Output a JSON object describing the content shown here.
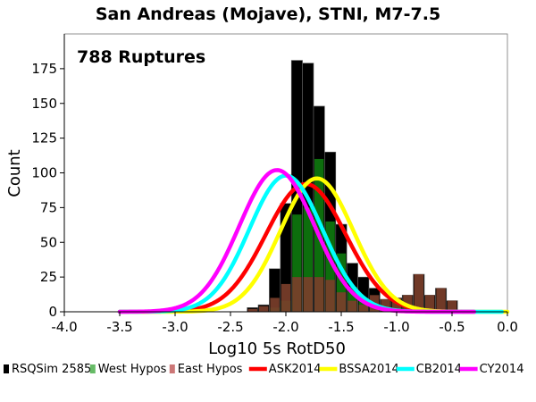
{
  "chart_data": {
    "type": "bar",
    "title": "San Andreas (Mojave), STNI, M7-7.5",
    "annotation": "788 Ruptures",
    "xlabel": "Log10 5s RotD50",
    "ylabel": "Count",
    "xlim": [
      -4.0,
      0.0
    ],
    "ylim": [
      0,
      200
    ],
    "x_ticks": [
      "-4.0",
      "-3.5",
      "-3.0",
      "-2.5",
      "-2.0",
      "-1.5",
      "-1.0",
      "-0.5",
      "0.0"
    ],
    "x_tick_values": [
      -4.0,
      -3.5,
      -3.0,
      -2.5,
      -2.0,
      -1.5,
      -1.0,
      -0.5,
      0.0
    ],
    "y_ticks": [
      "0",
      "25",
      "50",
      "75",
      "100",
      "125",
      "150",
      "175"
    ],
    "y_tick_values": [
      0,
      25,
      50,
      75,
      100,
      125,
      150,
      175
    ],
    "grid": false,
    "bin_width": 0.1,
    "bins": [
      {
        "x0": -2.35,
        "total": 3,
        "west": 0,
        "east": 2
      },
      {
        "x0": -2.25,
        "total": 5,
        "west": 0,
        "east": 4
      },
      {
        "x0": -2.15,
        "total": 31,
        "west": 3,
        "east": 10
      },
      {
        "x0": -2.05,
        "total": 78,
        "west": 8,
        "east": 20
      },
      {
        "x0": -1.95,
        "total": 181,
        "west": 70,
        "east": 25
      },
      {
        "x0": -1.85,
        "total": 179,
        "west": 75,
        "east": 25
      },
      {
        "x0": -1.75,
        "total": 148,
        "west": 110,
        "east": 25
      },
      {
        "x0": -1.65,
        "total": 115,
        "west": 65,
        "east": 23
      },
      {
        "x0": -1.55,
        "total": 63,
        "west": 42,
        "east": 14
      },
      {
        "x0": -1.45,
        "total": 35,
        "west": 18,
        "east": 8
      },
      {
        "x0": -1.35,
        "total": 25,
        "west": 10,
        "east": 5
      },
      {
        "x0": -1.25,
        "total": 17,
        "west": 5,
        "east": 12
      },
      {
        "x0": -1.15,
        "total": 9,
        "west": 0,
        "east": 9
      },
      {
        "x0": -1.05,
        "total": 10,
        "west": 0,
        "east": 10
      },
      {
        "x0": -0.95,
        "total": 12,
        "west": 0,
        "east": 12
      },
      {
        "x0": -0.85,
        "total": 27,
        "west": 0,
        "east": 27
      },
      {
        "x0": -0.75,
        "total": 12,
        "west": 0,
        "east": 12
      },
      {
        "x0": -0.65,
        "total": 17,
        "west": 0,
        "east": 17
      },
      {
        "x0": -0.55,
        "total": 8,
        "west": 0,
        "east": 8
      }
    ],
    "series": [
      {
        "name": "ASK2014",
        "color": "#ff0000",
        "mean": -1.82,
        "sigma": 0.36,
        "peak": 92,
        "range": [
          -3.5,
          -0.3
        ]
      },
      {
        "name": "BSSA2014",
        "color": "#ffff00",
        "mean": -1.72,
        "sigma": 0.33,
        "peak": 96,
        "range": [
          -3.5,
          0.0
        ]
      },
      {
        "name": "CB2014",
        "color": "#00ffff",
        "mean": -2.0,
        "sigma": 0.33,
        "peak": 98,
        "range": [
          -3.5,
          -0.05
        ]
      },
      {
        "name": "CY2014",
        "color": "#ff00ff",
        "mean": -2.08,
        "sigma": 0.34,
        "peak": 102,
        "range": [
          -3.5,
          -0.3
        ]
      }
    ],
    "legend": [
      {
        "label": "RSQSim 2585",
        "color": "#000000",
        "kind": "box"
      },
      {
        "label": "West Hypos",
        "color": "#66bb66",
        "kind": "box"
      },
      {
        "label": "East Hypos",
        "color": "#cc7777",
        "kind": "box"
      },
      {
        "label": "ASK2014",
        "color": "#ff0000",
        "kind": "line"
      },
      {
        "label": "BSSA2014",
        "color": "#ffff00",
        "kind": "line"
      },
      {
        "label": "CB2014",
        "color": "#00ffff",
        "kind": "line"
      },
      {
        "label": "CY2014",
        "color": "#ff00ff",
        "kind": "line"
      }
    ],
    "legend_placement": "bottom",
    "colors": {
      "total_bar": "#000000",
      "west_bar": "#0e7a0e",
      "east_bar": "#7a3e2a",
      "outline": "#666666",
      "axis": "#000000"
    }
  }
}
